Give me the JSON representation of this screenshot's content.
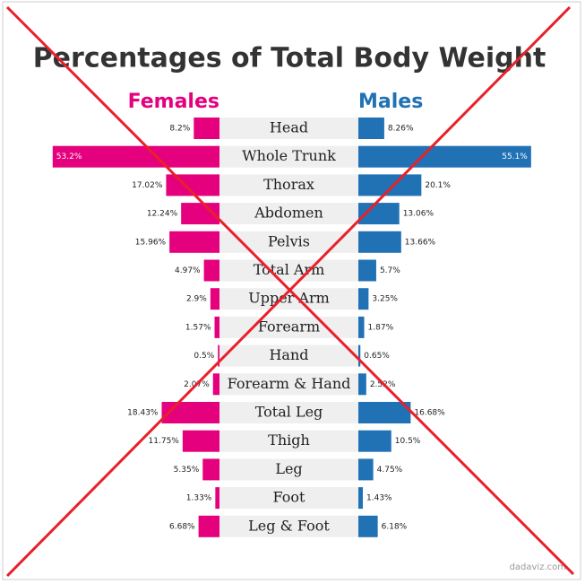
{
  "chart_data": {
    "type": "butterfly",
    "title": "Percentages of Total Body Weight",
    "categories": [
      "Head",
      "Whole Trunk",
      "Thorax",
      "Abdomen",
      "Pelvis",
      "Total Arm",
      "Upper Arm",
      "Forearm",
      "Hand",
      "Forearm & Hand",
      "Total Leg",
      "Thigh",
      "Leg",
      "Foot",
      "Leg & Foot"
    ],
    "series": [
      {
        "name": "Females",
        "color": "#e5007d",
        "values": [
          8.2,
          53.2,
          17.02,
          12.24,
          15.96,
          4.97,
          2.9,
          1.57,
          0.5,
          2.07,
          18.43,
          11.75,
          5.35,
          1.33,
          6.68
        ],
        "value_labels": [
          "8.2%",
          "53.2%",
          "17.02%",
          "12.24%",
          "15.96%",
          "4.97%",
          "2.9%",
          "1.57%",
          "0.5%",
          "2.07%",
          "18.43%",
          "11.75%",
          "5.35%",
          "1.33%",
          "6.68%"
        ]
      },
      {
        "name": "Males",
        "color": "#2171b5",
        "values": [
          8.26,
          55.1,
          20.1,
          13.06,
          13.66,
          5.7,
          3.25,
          1.87,
          0.65,
          2.52,
          16.68,
          10.5,
          4.75,
          1.43,
          6.18
        ],
        "value_labels": [
          "8.26%",
          "55.1%",
          "20.1%",
          "13.06%",
          "13.66%",
          "5.7%",
          "3.25%",
          "1.87%",
          "0.65%",
          "2.52%",
          "16.68%",
          "10.5%",
          "4.75%",
          "1.43%",
          "6.18%"
        ]
      }
    ],
    "credit": "dadaviz.com"
  }
}
